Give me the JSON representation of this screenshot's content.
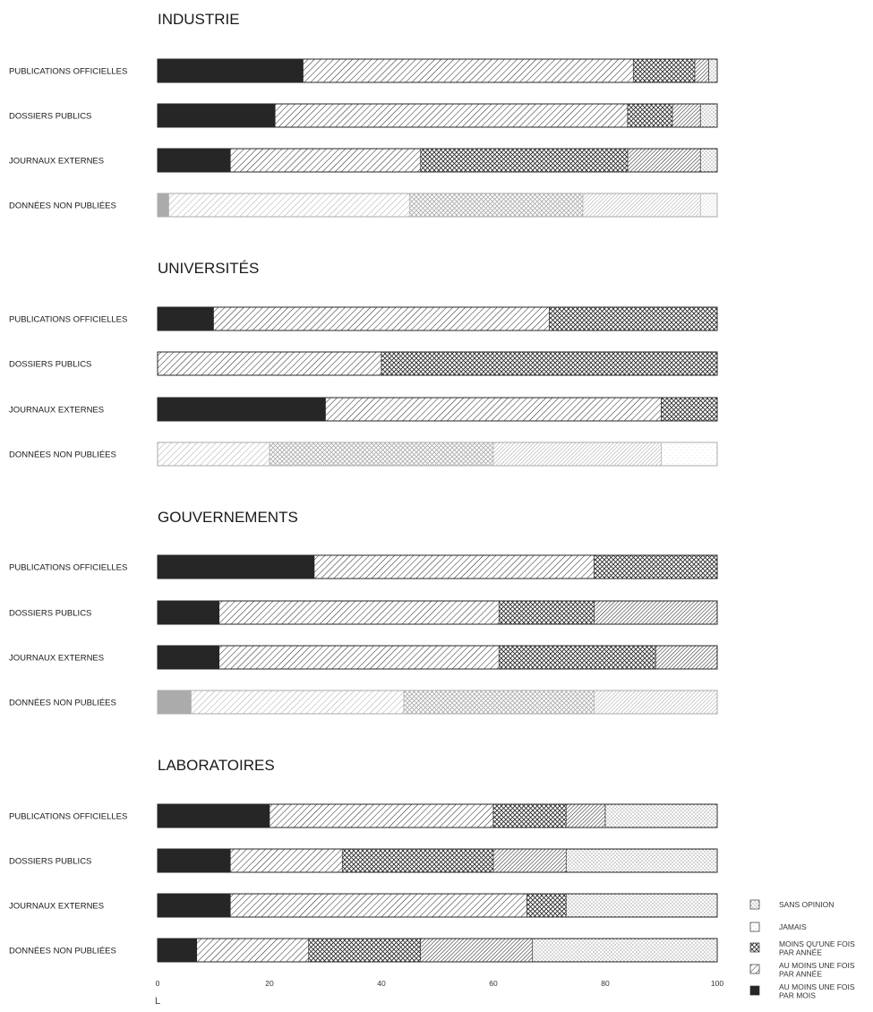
{
  "chart_data": {
    "type": "bar",
    "stacked": true,
    "orientation": "horizontal",
    "xlim": [
      0,
      100
    ],
    "x_ticks": [
      0,
      20,
      40,
      60,
      80,
      100
    ],
    "x_tick_labels": [
      "0",
      "20",
      "40",
      "60",
      "80",
      "100"
    ],
    "axis_marker": "L",
    "categories": [
      "PUBLICATIONS OFFICIELLES",
      "DOSSIERS PUBLICS",
      "JOURNAUX EXTERNES",
      "DONNÉES NON PUBLIÉES"
    ],
    "segment_order": [
      "au_moins_mois",
      "au_moins_annee",
      "moins_annee",
      "sans_opinion_diag",
      "jamais",
      "sans_opinion"
    ],
    "legend": [
      {
        "key": "sans_opinion",
        "label_lines": [
          "SANS OPINION"
        ],
        "pattern": "dots-boxed"
      },
      {
        "key": "jamais",
        "label_lines": [
          "JAMAIS"
        ],
        "pattern": "light-dots"
      },
      {
        "key": "moins_annee",
        "label_lines": [
          "MOINS QU'UNE FOIS",
          "PAR ANNÉE"
        ],
        "pattern": "crosshatch"
      },
      {
        "key": "au_moins_annee",
        "label_lines": [
          "AU MOINS UNE FOIS",
          "PAR ANNÉE"
        ],
        "pattern": "diagonal"
      },
      {
        "key": "au_moins_mois",
        "label_lines": [
          "AU MOINS UNE FOIS",
          "PAR MOIS"
        ],
        "pattern": "solid"
      }
    ],
    "panels": [
      {
        "title": "INDUSTRIE",
        "rows": [
          {
            "label": "PUBLICATIONS OFFICIELLES",
            "faded": false,
            "segments": [
              {
                "key": "au_moins_mois",
                "value": 26
              },
              {
                "key": "au_moins_annee",
                "value": 59
              },
              {
                "key": "moins_annee",
                "value": 11
              },
              {
                "key": "sans_opinion_diag",
                "value": 2.5
              },
              {
                "key": "sans_opinion",
                "value": 1.5
              }
            ]
          },
          {
            "label": "DOSSIERS PUBLICS",
            "faded": false,
            "segments": [
              {
                "key": "au_moins_mois",
                "value": 21
              },
              {
                "key": "au_moins_annee",
                "value": 63
              },
              {
                "key": "moins_annee",
                "value": 8
              },
              {
                "key": "sans_opinion_diag",
                "value": 5
              },
              {
                "key": "sans_opinion",
                "value": 3
              }
            ]
          },
          {
            "label": "JOURNAUX EXTERNES",
            "faded": false,
            "segments": [
              {
                "key": "au_moins_mois",
                "value": 13
              },
              {
                "key": "au_moins_annee",
                "value": 34
              },
              {
                "key": "moins_annee",
                "value": 37
              },
              {
                "key": "sans_opinion_diag",
                "value": 13
              },
              {
                "key": "sans_opinion",
                "value": 3
              }
            ]
          },
          {
            "label": "DONNÉES NON PUBLIÉES",
            "faded": true,
            "segments": [
              {
                "key": "au_moins_mois",
                "value": 2
              },
              {
                "key": "au_moins_annee",
                "value": 43
              },
              {
                "key": "moins_annee",
                "value": 31
              },
              {
                "key": "sans_opinion_diag",
                "value": 21
              },
              {
                "key": "sans_opinion",
                "value": 3
              }
            ]
          }
        ]
      },
      {
        "title": "UNIVERSITÉS",
        "rows": [
          {
            "label": "PUBLICATIONS OFFICIELLES",
            "faded": false,
            "segments": [
              {
                "key": "au_moins_mois",
                "value": 10
              },
              {
                "key": "au_moins_annee",
                "value": 60
              },
              {
                "key": "moins_annee",
                "value": 30
              }
            ]
          },
          {
            "label": "DOSSIERS PUBLICS",
            "faded": false,
            "segments": [
              {
                "key": "au_moins_annee",
                "value": 40
              },
              {
                "key": "moins_annee",
                "value": 60
              }
            ]
          },
          {
            "label": "JOURNAUX EXTERNES",
            "faded": false,
            "segments": [
              {
                "key": "au_moins_mois",
                "value": 30
              },
              {
                "key": "au_moins_annee",
                "value": 60
              },
              {
                "key": "moins_annee",
                "value": 10
              }
            ]
          },
          {
            "label": "DONNÉES NON PUBLIÉES",
            "faded": true,
            "segments": [
              {
                "key": "au_moins_annee",
                "value": 20
              },
              {
                "key": "moins_annee",
                "value": 40
              },
              {
                "key": "sans_opinion_diag",
                "value": 30
              },
              {
                "key": "jamais",
                "value": 10
              }
            ]
          }
        ]
      },
      {
        "title": "GOUVERNEMENTS",
        "rows": [
          {
            "label": "PUBLICATIONS OFFICIELLES",
            "faded": false,
            "segments": [
              {
                "key": "au_moins_mois",
                "value": 28
              },
              {
                "key": "au_moins_annee",
                "value": 50
              },
              {
                "key": "moins_annee",
                "value": 22
              }
            ]
          },
          {
            "label": "DOSSIERS PUBLICS",
            "faded": false,
            "segments": [
              {
                "key": "au_moins_mois",
                "value": 11
              },
              {
                "key": "au_moins_annee",
                "value": 50
              },
              {
                "key": "moins_annee",
                "value": 17
              },
              {
                "key": "sans_opinion_diag",
                "value": 22
              }
            ]
          },
          {
            "label": "JOURNAUX EXTERNES",
            "faded": false,
            "segments": [
              {
                "key": "au_moins_mois",
                "value": 11
              },
              {
                "key": "au_moins_annee",
                "value": 50
              },
              {
                "key": "moins_annee",
                "value": 28
              },
              {
                "key": "sans_opinion_diag",
                "value": 11
              }
            ]
          },
          {
            "label": "DONNÉES NON PUBLIÉES",
            "faded": true,
            "segments": [
              {
                "key": "au_moins_mois",
                "value": 6
              },
              {
                "key": "au_moins_annee",
                "value": 38
              },
              {
                "key": "moins_annee",
                "value": 34
              },
              {
                "key": "sans_opinion_diag",
                "value": 22
              }
            ]
          }
        ]
      },
      {
        "title": "LABORATOIRES",
        "rows": [
          {
            "label": "PUBLICATIONS OFFICIELLES",
            "faded": false,
            "segments": [
              {
                "key": "au_moins_mois",
                "value": 20
              },
              {
                "key": "au_moins_annee",
                "value": 40
              },
              {
                "key": "moins_annee",
                "value": 13
              },
              {
                "key": "sans_opinion_diag",
                "value": 7
              },
              {
                "key": "sans_opinion",
                "value": 20
              }
            ]
          },
          {
            "label": "DOSSIERS PUBLICS",
            "faded": false,
            "segments": [
              {
                "key": "au_moins_mois",
                "value": 13
              },
              {
                "key": "au_moins_annee",
                "value": 20
              },
              {
                "key": "moins_annee",
                "value": 27
              },
              {
                "key": "sans_opinion_diag",
                "value": 13
              },
              {
                "key": "sans_opinion",
                "value": 27
              }
            ]
          },
          {
            "label": "JOURNAUX EXTERNES",
            "faded": false,
            "segments": [
              {
                "key": "au_moins_mois",
                "value": 13
              },
              {
                "key": "au_moins_annee",
                "value": 53
              },
              {
                "key": "moins_annee",
                "value": 7
              },
              {
                "key": "sans_opinion",
                "value": 27
              }
            ]
          },
          {
            "label": "DONNÉES NON PUBLIÉES",
            "faded": false,
            "segments": [
              {
                "key": "au_moins_mois",
                "value": 7
              },
              {
                "key": "au_moins_annee",
                "value": 20
              },
              {
                "key": "moins_annee",
                "value": 20
              },
              {
                "key": "sans_opinion_diag",
                "value": 20
              },
              {
                "key": "sans_opinion",
                "value": 33
              }
            ]
          }
        ]
      }
    ]
  }
}
